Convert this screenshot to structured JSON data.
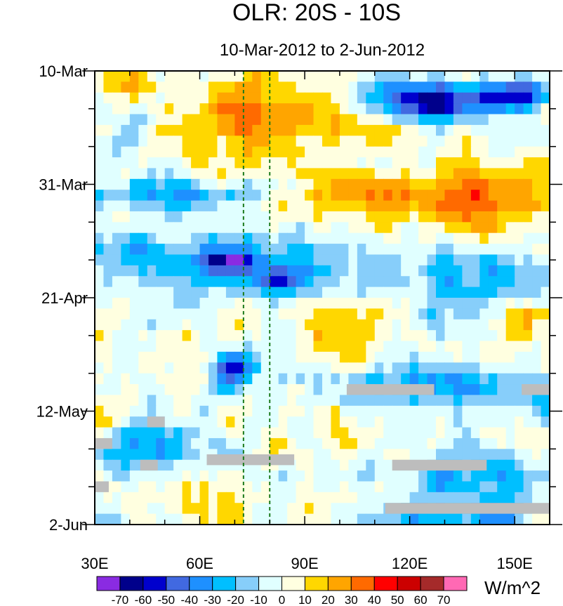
{
  "chart_data": {
    "type": "heatmap",
    "title": "OLR: 20S - 10S",
    "subtitle": "10-Mar-2012 to 2-Jun-2012",
    "xlabel": "",
    "ylabel": "",
    "x_range": [
      30,
      160
    ],
    "x_ticks": [
      {
        "value": 30,
        "label": "30E"
      },
      {
        "value": 60,
        "label": "60E"
      },
      {
        "value": 90,
        "label": "90E"
      },
      {
        "value": 120,
        "label": "120E"
      },
      {
        "value": 150,
        "label": "150E"
      }
    ],
    "y_range_days": [
      0,
      84
    ],
    "y_ticks": [
      {
        "day": 0,
        "label": "10-Mar"
      },
      {
        "day": 21,
        "label": "31-Mar"
      },
      {
        "day": 42,
        "label": "21-Apr"
      },
      {
        "day": 63,
        "label": "12-May"
      },
      {
        "day": 84,
        "label": "2-Jun"
      }
    ],
    "reference_lines_lon": [
      72.5,
      80
    ],
    "colorbar": {
      "units": "W/m^2",
      "levels": [
        -70,
        -60,
        -50,
        -40,
        -30,
        -20,
        -10,
        0,
        10,
        20,
        30,
        40,
        50,
        60,
        70
      ],
      "colors": [
        "#8a2be2",
        "#00008b",
        "#0000cd",
        "#4169e1",
        "#1e90ff",
        "#00bfff",
        "#87cefa",
        "#e0ffff",
        "#ffffe0",
        "#ffd700",
        "#ffa500",
        "#ff6a00",
        "#ff0000",
        "#cc0000",
        "#a52a2a",
        "#ff69b4"
      ]
    },
    "anomaly_features": [
      {
        "lon": [
          105,
          145
        ],
        "day": [
          2,
          9
        ],
        "value": -60
      },
      {
        "lon": [
          140,
          160
        ],
        "day": [
          2,
          7
        ],
        "value": -50
      },
      {
        "lon": [
          55,
          90
        ],
        "day": [
          0,
          17
        ],
        "value": 25
      },
      {
        "lon": [
          85,
          115
        ],
        "day": [
          4,
          14
        ],
        "value": 20
      },
      {
        "lon": [
          125,
          160
        ],
        "day": [
          18,
          30
        ],
        "value": 35
      },
      {
        "lon": [
          90,
          125
        ],
        "day": [
          18,
          28
        ],
        "value": 25
      },
      {
        "lon": [
          30,
          45
        ],
        "day": [
          0,
          6
        ],
        "value": 20
      },
      {
        "lon": [
          30,
          80
        ],
        "day": [
          20,
          26
        ],
        "value": -30
      },
      {
        "lon": [
          30,
          105
        ],
        "day": [
          31,
          40
        ],
        "value": -30
      },
      {
        "lon": [
          64,
          75
        ],
        "day": [
          33,
          37
        ],
        "value": -60
      },
      {
        "lon": [
          75,
          90
        ],
        "day": [
          36,
          42
        ],
        "value": -40
      },
      {
        "lon": [
          120,
          160
        ],
        "day": [
          34,
          44
        ],
        "value": -30
      },
      {
        "lon": [
          145,
          160
        ],
        "day": [
          41,
          49
        ],
        "value": 25
      },
      {
        "lon": [
          90,
          110
        ],
        "day": [
          43,
          54
        ],
        "value": 25
      },
      {
        "lon": [
          64,
          76
        ],
        "day": [
          52,
          58
        ],
        "value": -50
      },
      {
        "lon": [
          100,
          160
        ],
        "day": [
          54,
          62
        ],
        "value": -30
      },
      {
        "lon": [
          120,
          160
        ],
        "day": [
          70,
          79
        ],
        "value": -30
      },
      {
        "lon": [
          30,
          60
        ],
        "day": [
          66,
          74
        ],
        "value": -25
      },
      {
        "lon": [
          110,
          160
        ],
        "day": [
          80,
          84
        ],
        "value": -40
      },
      {
        "lon": [
          50,
          70
        ],
        "day": [
          75,
          84
        ],
        "value": 15
      }
    ],
    "missing_data_segments": [
      {
        "lon": [
          102,
          127
        ],
        "day": [
          58,
          60
        ]
      },
      {
        "lon": [
          152,
          160
        ],
        "day": [
          58,
          60
        ]
      },
      {
        "lon": [
          45,
          50
        ],
        "day": [
          64,
          66
        ]
      },
      {
        "lon": [
          30,
          35
        ],
        "day": [
          68,
          70
        ]
      },
      {
        "lon": [
          62,
          87
        ],
        "day": [
          71,
          73
        ]
      },
      {
        "lon": [
          115,
          142
        ],
        "day": [
          72,
          74
        ]
      },
      {
        "lon": [
          43,
          48
        ],
        "day": [
          72,
          74
        ]
      },
      {
        "lon": [
          30,
          34
        ],
        "day": [
          76,
          78
        ]
      },
      {
        "lon": [
          113,
          160
        ],
        "day": [
          80,
          82
        ]
      }
    ]
  }
}
